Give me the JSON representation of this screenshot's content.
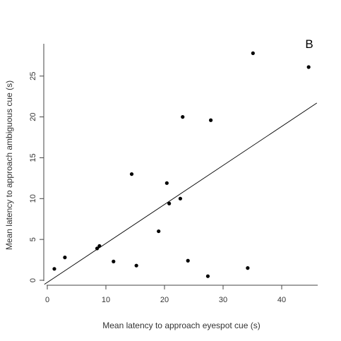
{
  "chart_data": {
    "type": "scatter",
    "panel_label": "B",
    "xlabel": "Mean latency to approach eyespot cue (s)",
    "ylabel": "Mean latency to approach ambiguous cue (s)",
    "xlim": [
      0,
      46
    ],
    "ylim": [
      0,
      28.5
    ],
    "xticks": [
      0,
      10,
      20,
      30,
      40
    ],
    "yticks": [
      0,
      5,
      10,
      15,
      20,
      25
    ],
    "grid": false,
    "series": [
      {
        "points": [
          {
            "x": 1.2,
            "y": 1.4
          },
          {
            "x": 3.0,
            "y": 2.8
          },
          {
            "x": 8.5,
            "y": 3.9
          },
          {
            "x": 8.9,
            "y": 4.2
          },
          {
            "x": 11.3,
            "y": 2.3
          },
          {
            "x": 14.4,
            "y": 13.0
          },
          {
            "x": 15.2,
            "y": 1.8
          },
          {
            "x": 19.0,
            "y": 6.0
          },
          {
            "x": 20.4,
            "y": 11.9
          },
          {
            "x": 20.8,
            "y": 9.4
          },
          {
            "x": 22.7,
            "y": 10.0
          },
          {
            "x": 23.1,
            "y": 20.0
          },
          {
            "x": 24.0,
            "y": 2.4
          },
          {
            "x": 27.4,
            "y": 0.5
          },
          {
            "x": 27.9,
            "y": 19.6
          },
          {
            "x": 34.2,
            "y": 1.5
          },
          {
            "x": 35.1,
            "y": 27.8
          },
          {
            "x": 44.6,
            "y": 26.1
          }
        ]
      }
    ],
    "fit_line": {
      "from": {
        "x": -0.5,
        "y": -0.5
      },
      "to": {
        "x": 46.0,
        "y": 21.7
      }
    }
  }
}
